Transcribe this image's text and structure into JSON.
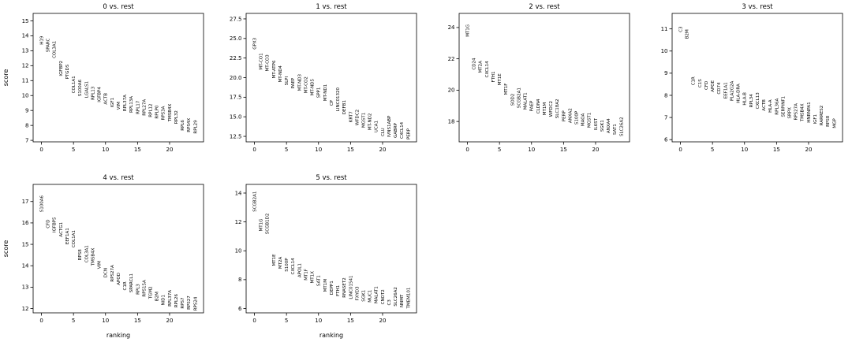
{
  "figure": {
    "background": "#ffffff",
    "text_color": "#000000",
    "spine_color": "#000000"
  },
  "chart_data": [
    {
      "type": "scatter",
      "title": "0 vs. rest",
      "xlabel": "",
      "ylabel": "score",
      "grid": {
        "row": 0,
        "col": 0
      },
      "xlim": [
        -1.3,
        25.3
      ],
      "ylim": [
        6.9,
        15.5
      ],
      "xticks": [
        "0",
        "5",
        "10",
        "15",
        "20"
      ],
      "yticks": [
        "7",
        "8",
        "9",
        "10",
        "11",
        "12",
        "13",
        "14",
        "15"
      ],
      "genes": [
        "H19",
        "SPARC",
        "COL3A1",
        "IGFBP2",
        "PTGDS",
        "COL1A1",
        "S100A6",
        "LGALS1",
        "RPL13",
        "IGFBP4",
        "ACTB",
        "IGF1",
        "VIM",
        "RPL37A",
        "RPL13A",
        "RPL17",
        "RPL27A",
        "RPL12",
        "RPLP0",
        "RPS3A",
        "TMSB4X",
        "RPL32",
        "RPL6",
        "RPS4X",
        "RPL29"
      ],
      "scores": [
        13.4,
        12.9,
        12.5,
        11.3,
        11.1,
        10.15,
        9.95,
        9.85,
        9.7,
        9.55,
        9.4,
        9.2,
        9.05,
        8.95,
        8.85,
        8.75,
        8.65,
        8.55,
        8.45,
        8.35,
        8.25,
        8.1,
        7.65,
        7.55,
        7.45
      ]
    },
    {
      "type": "scatter",
      "title": "1 vs. rest",
      "xlabel": "",
      "ylabel": "",
      "grid": {
        "row": 0,
        "col": 1
      },
      "xlim": [
        -1.3,
        25.3
      ],
      "ylim": [
        11.8,
        28.2
      ],
      "xticks": [
        "0",
        "5",
        "10",
        "15",
        "20"
      ],
      "yticks": [
        "12.5",
        "15.0",
        "17.5",
        "20.0",
        "22.5",
        "25.0",
        "27.5"
      ],
      "genes": [
        "GPX3",
        "MT-CO1",
        "MT-CO3",
        "MT-ATP6",
        "MT-ND4",
        "SLPI",
        "PAEP",
        "MT-ND3",
        "MT-CO2",
        "MT-ND5",
        "SPP1",
        "MT-ND1",
        "CP",
        "LINC01320",
        "DEFB1",
        "KRT7",
        "WFDC2",
        "MGST1",
        "MT-ND2",
        "UCA1",
        "CLU",
        "IVNS1ABP",
        "GABRP",
        "CXCL14",
        "PERP"
      ],
      "scores": [
        23.6,
        21.0,
        20.8,
        19.9,
        19.4,
        19.0,
        18.6,
        18.3,
        18.0,
        17.7,
        17.4,
        17.0,
        16.4,
        15.7,
        15.3,
        14.3,
        13.9,
        13.6,
        13.3,
        13.0,
        12.5,
        12.4,
        12.3,
        12.2,
        12.1
      ]
    },
    {
      "type": "scatter",
      "title": "2 vs. rest",
      "xlabel": "",
      "ylabel": "",
      "grid": {
        "row": 0,
        "col": 2
      },
      "xlim": [
        -1.3,
        25.3
      ],
      "ylim": [
        16.7,
        24.9
      ],
      "xticks": [
        "0",
        "5",
        "10",
        "15",
        "20"
      ],
      "yticks": [
        "18",
        "20",
        "22",
        "24"
      ],
      "genes": [
        "MT1G",
        "CD24",
        "MT2A",
        "CXCL14",
        "FTH1",
        "MT1E",
        "MT1F",
        "SOD2",
        "SCGB2A1",
        "MALAT1",
        "PAEP",
        "CLDN4",
        "MT1M",
        "WFDC2",
        "SLC18A2",
        "PERP",
        "ANXA2",
        "S100P",
        "MAOA",
        "MGST1",
        "IL6ST",
        "SGK1",
        "ANXA4",
        "SAT1",
        "SLC26A2"
      ],
      "scores": [
        23.4,
        21.3,
        21.1,
        20.8,
        20.5,
        20.3,
        19.7,
        19.0,
        18.85,
        18.75,
        18.65,
        18.5,
        18.4,
        18.3,
        18.2,
        18.0,
        17.9,
        17.8,
        17.7,
        17.6,
        17.45,
        17.35,
        17.25,
        17.15,
        17.05
      ]
    },
    {
      "type": "scatter",
      "title": "3 vs. rest",
      "xlabel": "",
      "ylabel": "",
      "grid": {
        "row": 0,
        "col": 3
      },
      "xlim": [
        -1.3,
        25.3
      ],
      "ylim": [
        5.9,
        11.7
      ],
      "xticks": [
        "0",
        "5",
        "10",
        "15",
        "20"
      ],
      "yticks": [
        "6",
        "7",
        "8",
        "9",
        "10",
        "11"
      ],
      "genes": [
        "C3",
        "B2M",
        "C1R",
        "C1S",
        "CFD",
        "APOE",
        "CD74",
        "EEF1A1",
        "PLA2G2A",
        "HLA-DRA",
        "HLA-B",
        "RPL34",
        "CXCL13",
        "ACTB",
        "HLA-A",
        "RPL36A",
        "SERPINF1",
        "SRPX",
        "RPS27A",
        "TMSB4X",
        "HNRNPA1",
        "IGF1",
        "RARRES2",
        "RPS8",
        "MGP"
      ],
      "scores": [
        10.85,
        10.55,
        8.45,
        8.35,
        8.25,
        8.15,
        8.05,
        7.85,
        7.75,
        7.65,
        7.55,
        7.45,
        7.38,
        7.3,
        7.22,
        7.12,
        7.02,
        6.95,
        6.88,
        6.82,
        6.76,
        6.7,
        6.64,
        6.58,
        6.52
      ]
    },
    {
      "type": "scatter",
      "title": "4 vs. rest",
      "xlabel": "ranking",
      "ylabel": "score",
      "grid": {
        "row": 1,
        "col": 0
      },
      "xlim": [
        -1.3,
        25.3
      ],
      "ylim": [
        11.8,
        17.8
      ],
      "xticks": [
        "0",
        "5",
        "10",
        "15",
        "20"
      ],
      "yticks": [
        "12",
        "13",
        "14",
        "15",
        "16",
        "17"
      ],
      "genes": [
        "S100A6",
        "CFD",
        "IGFBP5",
        "ACTG1",
        "EEF1A1",
        "COL1A1",
        "RPS8",
        "COL3A1",
        "TMSB4X",
        "VIM",
        "DCN",
        "RPS27A",
        "APOD",
        "C1R",
        "SPARCL1",
        "RPL3",
        "RPS15A",
        "TGM2",
        "B2M",
        "NID1",
        "RPL37A",
        "RPL26",
        "RPS7",
        "RPS27",
        "RPS24"
      ],
      "scores": [
        16.5,
        15.75,
        15.55,
        15.35,
        15.0,
        14.85,
        14.25,
        14.15,
        14.0,
        13.85,
        13.45,
        13.25,
        13.1,
        12.85,
        12.75,
        12.65,
        12.55,
        12.45,
        12.35,
        12.15,
        12.1,
        12.05,
        12.0,
        11.95,
        11.9
      ]
    },
    {
      "type": "scatter",
      "title": "5 vs. rest",
      "xlabel": "ranking",
      "ylabel": "",
      "grid": {
        "row": 1,
        "col": 1
      },
      "xlim": [
        -1.3,
        25.3
      ],
      "ylim": [
        5.7,
        14.6
      ],
      "xticks": [
        "0",
        "5",
        "10",
        "15",
        "20"
      ],
      "yticks": [
        "6",
        "8",
        "10",
        "12",
        "14"
      ],
      "genes": [
        "SCGB2A1",
        "MT1G",
        "SCGB1D2",
        "MT1E",
        "MT2A",
        "S100P",
        "CXCL14",
        "APOL1",
        "MT1F",
        "MT1X",
        "SAT1",
        "MT1M",
        "DEPP1",
        "FTH1",
        "RNASET2",
        "LINC01541",
        "FXYD3",
        "SGK1",
        "MUC1",
        "MALAT1",
        "CNOT2",
        "C3",
        "SLC26A2",
        "NNMT",
        "TMEM101"
      ],
      "scores": [
        12.7,
        11.35,
        11.15,
        8.95,
        8.75,
        8.55,
        8.35,
        8.15,
        7.95,
        7.75,
        7.55,
        7.15,
        6.95,
        6.85,
        6.75,
        6.65,
        6.55,
        6.48,
        6.42,
        6.35,
        6.28,
        6.22,
        6.15,
        6.08,
        6.0
      ]
    }
  ]
}
